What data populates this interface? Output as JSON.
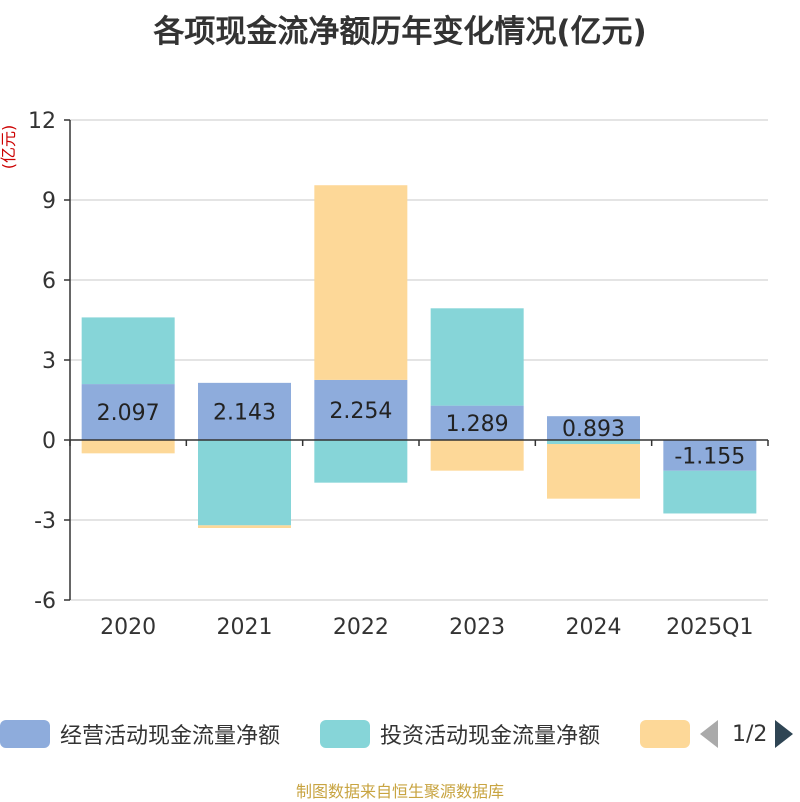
{
  "title": "各项现金流净额历年变化情况(亿元)",
  "source": "制图数据来自恒生聚源数据库",
  "colors": {
    "operating": "#8eacdc",
    "investing": "#86d5d8",
    "financing": "#fdd898",
    "axis": "#333333",
    "grid": "#c8c8c8",
    "unit": "#cc0000"
  },
  "legend": {
    "items": [
      {
        "label": "经营活动现金流量净额",
        "color": "#8eacdc"
      },
      {
        "label": "投资活动现金流量净额",
        "color": "#86d5d8"
      },
      {
        "label": "",
        "color": "#fdd898"
      }
    ],
    "page": "1/2"
  },
  "chart_data": {
    "type": "bar",
    "stacked": true,
    "ylabel": "(亿元)",
    "ylim": [
      -6,
      12
    ],
    "yticks": [
      -6,
      -3,
      0,
      3,
      6,
      9,
      12
    ],
    "categories": [
      "2020",
      "2021",
      "2022",
      "2023",
      "2024",
      "2025Q1"
    ],
    "series": [
      {
        "name": "经营活动现金流量净额",
        "values": [
          2.097,
          2.143,
          2.254,
          1.289,
          0.893,
          -1.155
        ],
        "labels": [
          "2.097",
          "2.143",
          "2.254",
          "1.289",
          "0.893",
          "-1.155"
        ]
      },
      {
        "name": "投资活动现金流量净额",
        "values": [
          2.5,
          -3.2,
          -1.6,
          3.65,
          -0.15,
          -1.6
        ]
      },
      {
        "values": [
          -0.5,
          -0.1,
          7.3,
          -1.15,
          -2.05,
          0
        ]
      }
    ],
    "grid": true,
    "legend_position": "bottom"
  }
}
